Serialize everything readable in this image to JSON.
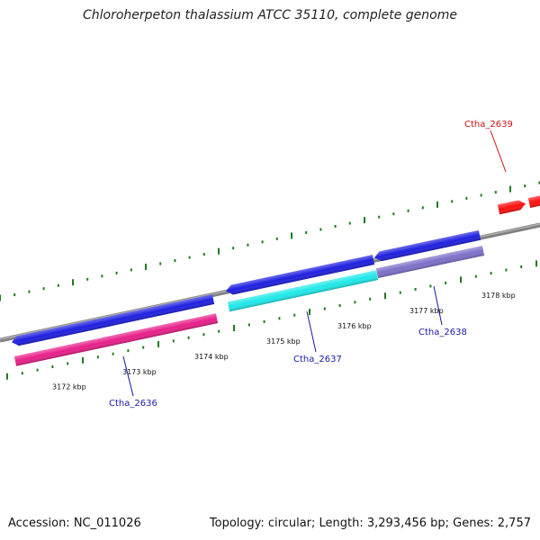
{
  "title": "Chloroherpeton thalassium ATCC 35110, complete genome",
  "footer": {
    "accession": "Accession: NC_011026",
    "topology": "Topology: circular; Length: 3,293,456 bp; Genes: 2,757"
  },
  "colors": {
    "backbone": "#8a8a8a",
    "tick": "#1f7a1f",
    "gene_forward": "#2020e0",
    "cds_2636": "#e8208a",
    "cds_2637": "#20e8e8",
    "cds_2638": "#7d70c8",
    "gene_2639": "#ff1010",
    "label_blue": "#1a1aa6",
    "label_red": "#d01010"
  },
  "scale_labels": [
    "3172 kbp",
    "3173 kbp",
    "3174 kbp",
    "3175 kbp",
    "3176 kbp",
    "3177 kbp",
    "3178 kbp"
  ],
  "genes": [
    {
      "label": "Ctha_2636",
      "label_color": "#1a1aa6"
    },
    {
      "label": "Ctha_2637",
      "label_color": "#1a1aa6"
    },
    {
      "label": "Ctha_2638",
      "label_color": "#1a1aa6"
    },
    {
      "label": "Ctha_2639",
      "label_color": "#d01010"
    }
  ]
}
